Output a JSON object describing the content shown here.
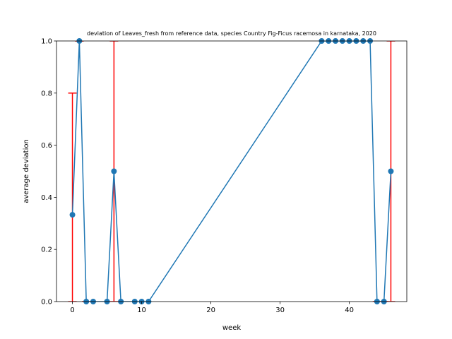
{
  "chart_data": {
    "type": "line",
    "title": "deviation of Leaves_fresh from reference data, species Country Fig-Ficus racemosa in karnataka, 2020",
    "xlabel": "week",
    "ylabel": "average deviation",
    "xlim": [
      -2.3,
      48.3
    ],
    "ylim": [
      0,
      1
    ],
    "xticks": [
      0,
      10,
      20,
      30,
      40
    ],
    "yticks": [
      0.0,
      0.2,
      0.4,
      0.6,
      0.8,
      1.0
    ],
    "xtick_labels": [
      "0",
      "10",
      "20",
      "30",
      "40"
    ],
    "ytick_labels": [
      "0.0",
      "0.2",
      "0.4",
      "0.6",
      "0.8",
      "1.0"
    ],
    "grid": false,
    "series": [
      {
        "line_color": "#1f77b4",
        "marker": "circle",
        "x": [
          0,
          1,
          2,
          3,
          5,
          6,
          7,
          9,
          10,
          11,
          36,
          37,
          38,
          39,
          40,
          41,
          42,
          43,
          44,
          45,
          46
        ],
        "y": [
          0.333,
          1.0,
          0.0,
          0.0,
          0.0,
          0.5,
          0.0,
          0.0,
          0.0,
          0.0,
          1.0,
          1.0,
          1.0,
          1.0,
          1.0,
          1.0,
          1.0,
          1.0,
          0.0,
          0.0,
          0.5
        ]
      }
    ],
    "error_bars": {
      "color": "#ff0000",
      "items": [
        {
          "x": 0,
          "low": 0.0,
          "high": 0.8
        },
        {
          "x": 1,
          "low": 1.0,
          "high": 1.0
        },
        {
          "x": 2,
          "low": 0.0,
          "high": 0.0
        },
        {
          "x": 6,
          "low": 0.0,
          "high": 1.0
        },
        {
          "x": 44,
          "low": 0.0,
          "high": 0.0
        },
        {
          "x": 45,
          "low": 0.0,
          "high": 0.0
        },
        {
          "x": 46,
          "low": 0.0,
          "high": 1.0
        }
      ]
    }
  }
}
